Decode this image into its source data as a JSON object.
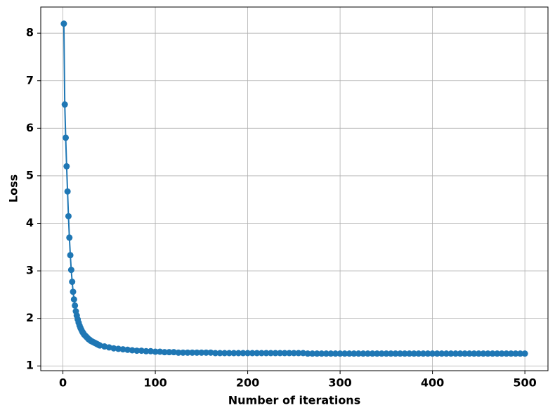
{
  "chart_data": {
    "type": "line",
    "xlabel": "Number of iterations",
    "ylabel": "Loss",
    "x": [
      1,
      2,
      3,
      4,
      5,
      6,
      7,
      8,
      9,
      10,
      11,
      12,
      13,
      14,
      15,
      16,
      17,
      18,
      19,
      20,
      21,
      22,
      23,
      24,
      25,
      26,
      27,
      28,
      29,
      30,
      31,
      32,
      33,
      34,
      35,
      36,
      37,
      38,
      39,
      40,
      45,
      50,
      55,
      60,
      65,
      70,
      75,
      80,
      85,
      90,
      95,
      100,
      105,
      110,
      115,
      120,
      125,
      130,
      135,
      140,
      145,
      150,
      155,
      160,
      165,
      170,
      175,
      180,
      185,
      190,
      195,
      200,
      205,
      210,
      215,
      220,
      225,
      230,
      235,
      240,
      245,
      250,
      255,
      260,
      265,
      270,
      275,
      280,
      285,
      290,
      295,
      300,
      305,
      310,
      315,
      320,
      325,
      330,
      335,
      340,
      345,
      350,
      355,
      360,
      365,
      370,
      375,
      380,
      385,
      390,
      395,
      400,
      405,
      410,
      415,
      420,
      425,
      430,
      435,
      440,
      445,
      450,
      455,
      460,
      465,
      470,
      475,
      480,
      485,
      490,
      495,
      500
    ],
    "series": [
      {
        "color": "#1f77b4",
        "values": [
          8.2,
          6.5,
          5.8,
          5.2,
          4.67,
          4.15,
          3.7,
          3.33,
          3.02,
          2.77,
          2.56,
          2.4,
          2.27,
          2.15,
          2.06,
          1.98,
          1.91,
          1.85,
          1.8,
          1.76,
          1.72,
          1.69,
          1.66,
          1.64,
          1.62,
          1.6,
          1.58,
          1.56,
          1.55,
          1.53,
          1.52,
          1.51,
          1.5,
          1.49,
          1.48,
          1.47,
          1.46,
          1.45,
          1.44,
          1.43,
          1.41,
          1.39,
          1.37,
          1.36,
          1.35,
          1.34,
          1.33,
          1.32,
          1.32,
          1.31,
          1.31,
          1.3,
          1.3,
          1.29,
          1.29,
          1.29,
          1.28,
          1.28,
          1.28,
          1.28,
          1.28,
          1.28,
          1.28,
          1.28,
          1.27,
          1.27,
          1.27,
          1.27,
          1.27,
          1.27,
          1.27,
          1.27,
          1.27,
          1.27,
          1.27,
          1.27,
          1.27,
          1.27,
          1.27,
          1.27,
          1.27,
          1.27,
          1.27,
          1.27,
          1.26,
          1.26,
          1.26,
          1.26,
          1.26,
          1.26,
          1.26,
          1.26,
          1.26,
          1.26,
          1.26,
          1.26,
          1.26,
          1.26,
          1.26,
          1.26,
          1.26,
          1.26,
          1.26,
          1.26,
          1.26,
          1.26,
          1.26,
          1.26,
          1.26,
          1.26,
          1.26,
          1.26,
          1.26,
          1.26,
          1.26,
          1.26,
          1.26,
          1.26,
          1.26,
          1.26,
          1.26,
          1.26,
          1.26,
          1.26,
          1.26,
          1.26,
          1.26,
          1.26,
          1.26,
          1.26,
          1.26,
          1.26
        ]
      }
    ],
    "xlim": [
      -24,
      525
    ],
    "ylim": [
      0.9,
      8.55
    ],
    "xticks": [
      0,
      100,
      200,
      300,
      400,
      500
    ],
    "yticks": [
      1,
      2,
      3,
      4,
      5,
      6,
      7,
      8
    ],
    "grid": true
  }
}
